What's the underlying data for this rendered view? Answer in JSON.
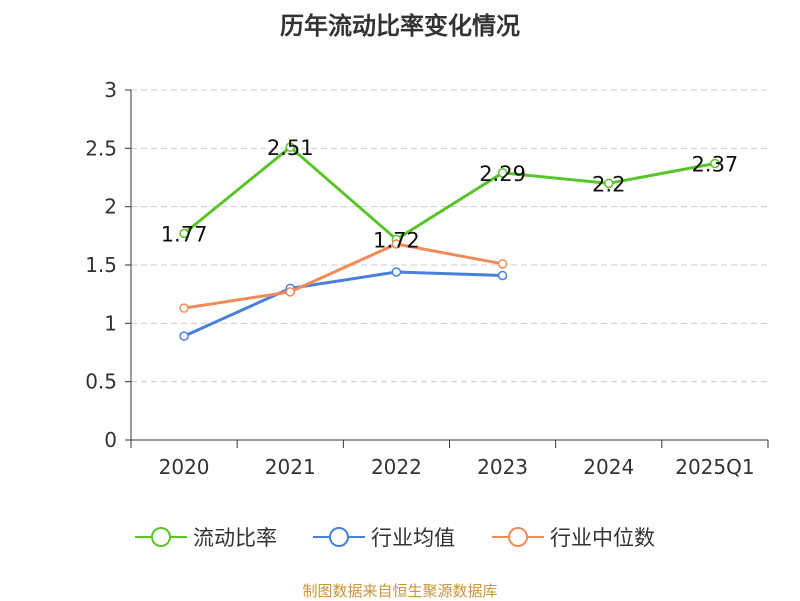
{
  "colors": {
    "current_ratio": "#5bc42a",
    "industry_avg": "#4a7fdc",
    "industry_median": "#f28b5a",
    "axis": "#333333",
    "grid": "#cccccc",
    "source": "#c8963c"
  },
  "chart_data": {
    "type": "line",
    "title": "历年流动比率变化情况",
    "categories": [
      "2020",
      "2021",
      "2022",
      "2023",
      "2024",
      "2025Q1"
    ],
    "ylim": [
      0,
      3
    ],
    "yticks": [
      "0",
      "0.5",
      "1",
      "1.5",
      "2",
      "2.5",
      "3"
    ],
    "grid": true,
    "legend_position": "bottom",
    "series": [
      {
        "name": "流动比率",
        "key": "current_ratio",
        "values": [
          1.77,
          2.51,
          1.72,
          2.29,
          2.2,
          2.37
        ],
        "labels": [
          "1.77",
          "2.51",
          "1.72",
          "2.29",
          "2.2",
          "2.37"
        ]
      },
      {
        "name": "行业均值",
        "key": "industry_avg",
        "values": [
          0.89,
          1.3,
          1.44,
          1.41,
          null,
          null
        ]
      },
      {
        "name": "行业中位数",
        "key": "industry_median",
        "values": [
          1.13,
          1.27,
          1.68,
          1.51,
          null,
          null
        ]
      }
    ]
  },
  "source_text": "制图数据来自恒生聚源数据库"
}
